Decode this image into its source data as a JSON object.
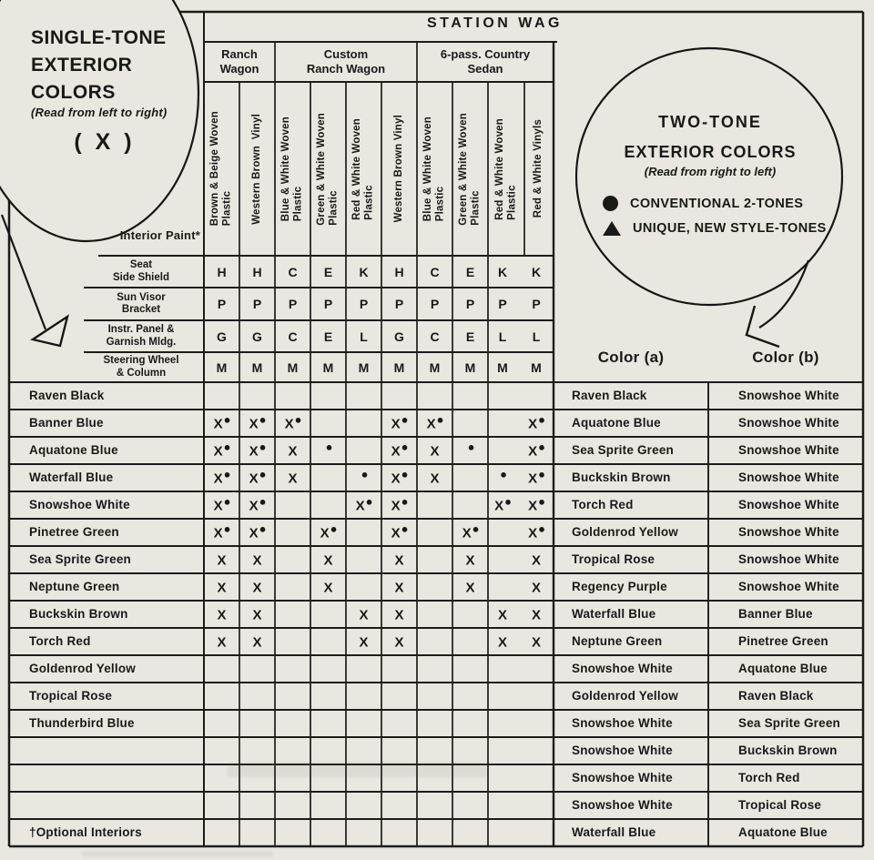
{
  "header": {
    "station_title": "STATION WAG"
  },
  "single_tone": {
    "heading_lines": [
      "SINGLE-TONE",
      "EXTERIOR",
      "COLORS"
    ],
    "subheading": "(Read from left to right)",
    "symbol": "( X )"
  },
  "two_tone": {
    "heading_line1": "TWO-TONE",
    "heading_line2": "EXTERIOR COLORS",
    "subheading": "(Read from right to left)",
    "legend": [
      {
        "symbol": "circle-icon",
        "label": "CONVENTIONAL 2-TONES"
      },
      {
        "symbol": "triangle-icon",
        "label": "UNIQUE, NEW STYLE-TONES"
      }
    ],
    "col_a_header": "Color (a)",
    "col_b_header": "Color (b)",
    "pairs": [
      [
        "Raven Black",
        "Snowshoe White"
      ],
      [
        "Aquatone Blue",
        "Snowshoe White"
      ],
      [
        "Sea Sprite Green",
        "Snowshoe White"
      ],
      [
        "Buckskin Brown",
        "Snowshoe White"
      ],
      [
        "Torch Red",
        "Snowshoe White"
      ],
      [
        "Goldenrod Yellow",
        "Snowshoe White"
      ],
      [
        "Tropical Rose",
        "Snowshoe White"
      ],
      [
        "Regency Purple",
        "Snowshoe White"
      ],
      [
        "Waterfall Blue",
        "Banner Blue"
      ],
      [
        "Neptune Green",
        "Pinetree Green"
      ],
      [
        "Snowshoe White",
        "Aquatone Blue"
      ],
      [
        "Goldenrod Yellow",
        "Raven Black"
      ],
      [
        "Snowshoe White",
        "Sea Sprite Green"
      ],
      [
        "Snowshoe White",
        "Buckskin Brown"
      ],
      [
        "Snowshoe White",
        "Torch Red"
      ],
      [
        "Snowshoe White",
        "Tropical Rose"
      ],
      [
        "Waterfall Blue",
        "Aquatone Blue"
      ]
    ]
  },
  "grid": {
    "groups": [
      {
        "lines": [
          "Ranch",
          "Wagon"
        ],
        "from": 0,
        "to": 2
      },
      {
        "lines": [
          "Custom",
          "Ranch Wagon"
        ],
        "from": 2,
        "to": 6
      },
      {
        "lines": [
          "6-pass. Country",
          "Sedan"
        ],
        "from": 6,
        "to": 10
      }
    ],
    "columns": [
      [
        "Brown & Beige Woven",
        "Plastic"
      ],
      [
        "Western Brown  Vinyl"
      ],
      [
        "Blue & White Woven",
        "Plastic"
      ],
      [
        "Green & White Woven",
        "Plastic"
      ],
      [
        "Red & White Woven",
        "Plastic"
      ],
      [
        "Western Brown Vinyl"
      ],
      [
        "Blue & White Woven",
        "Plastic"
      ],
      [
        "Green & White Woven",
        "Plastic"
      ],
      [
        "Red & White Woven",
        "Plastic"
      ],
      [
        "Red & White Vinyls"
      ]
    ],
    "interior_paint_label": "Interior Paint*",
    "trim_rows": [
      {
        "lines": [
          "Seat",
          "Side Shield"
        ],
        "values": [
          "H",
          "H",
          "C",
          "E",
          "K",
          "H",
          "C",
          "E",
          "K",
          "K"
        ]
      },
      {
        "lines": [
          "Sun Visor",
          "Bracket"
        ],
        "values": [
          "P",
          "P",
          "P",
          "P",
          "P",
          "P",
          "P",
          "P",
          "P",
          "P"
        ]
      },
      {
        "lines": [
          "Instr. Panel &",
          "Garnish Mldg."
        ],
        "values": [
          "G",
          "G",
          "C",
          "E",
          "L",
          "G",
          "C",
          "E",
          "L",
          "L"
        ]
      },
      {
        "lines": [
          "Steering Wheel",
          "& Column"
        ],
        "values": [
          "M",
          "M",
          "M",
          "M",
          "M",
          "M",
          "M",
          "M",
          "M",
          "M"
        ]
      }
    ],
    "color_rows": [
      {
        "label": "Raven Black",
        "marks": [
          "",
          "",
          "",
          "",
          "",
          "",
          "",
          "",
          "",
          ""
        ]
      },
      {
        "label": "Banner Blue",
        "marks": [
          "X●",
          "X●",
          "X●",
          "",
          "",
          "X●",
          "X●",
          "",
          "",
          "X●"
        ]
      },
      {
        "label": "Aquatone Blue",
        "marks": [
          "X●",
          "X●",
          "X",
          "●",
          "",
          "X●",
          "X",
          "●",
          "",
          "X●"
        ]
      },
      {
        "label": "Waterfall Blue",
        "marks": [
          "X●",
          "X●",
          "X",
          "",
          "●",
          "X●",
          "X",
          "",
          "●",
          "X●"
        ]
      },
      {
        "label": "Snowshoe White",
        "marks": [
          "X●",
          "X●",
          "",
          "",
          "X●",
          "X●",
          "",
          "",
          "X●",
          "X●"
        ]
      },
      {
        "label": "Pinetree Green",
        "marks": [
          "X●",
          "X●",
          "",
          "X●",
          "",
          "X●",
          "",
          "X●",
          "",
          "X●"
        ]
      },
      {
        "label": "Sea Sprite Green",
        "marks": [
          "X",
          "X",
          "",
          "X",
          "",
          "X",
          "",
          "X",
          "",
          "X"
        ]
      },
      {
        "label": "Neptune Green",
        "marks": [
          "X",
          "X",
          "",
          "X",
          "",
          "X",
          "",
          "X",
          "",
          "X"
        ]
      },
      {
        "label": "Buckskin Brown",
        "marks": [
          "X",
          "X",
          "",
          "",
          "X",
          "X",
          "",
          "",
          "X",
          "X"
        ]
      },
      {
        "label": "Torch Red",
        "marks": [
          "X",
          "X",
          "",
          "",
          "X",
          "X",
          "",
          "",
          "X",
          "X"
        ]
      },
      {
        "label": "Goldenrod Yellow",
        "marks": [
          "",
          "",
          "",
          "",
          "",
          "",
          "",
          "",
          "",
          ""
        ]
      },
      {
        "label": "Tropical Rose",
        "marks": [
          "",
          "",
          "",
          "",
          "",
          "",
          "",
          "",
          "",
          ""
        ]
      },
      {
        "label": "Thunderbird Blue",
        "marks": [
          "",
          "",
          "",
          "",
          "",
          "",
          "",
          "",
          "",
          ""
        ]
      },
      {
        "label": "",
        "marks": [
          "",
          "",
          "",
          "",
          "",
          "",
          "",
          "",
          "",
          ""
        ]
      },
      {
        "label": "",
        "marks": [
          "",
          "",
          "",
          "",
          "",
          "",
          "",
          "",
          "",
          ""
        ]
      },
      {
        "label": "",
        "marks": [
          "",
          "",
          "",
          "",
          "",
          "",
          "",
          "",
          "",
          ""
        ]
      },
      {
        "label": "†Optional Interiors",
        "marks": [
          "",
          "",
          "",
          "",
          "",
          "",
          "",
          "",
          "",
          ""
        ]
      }
    ]
  },
  "colors": {
    "paper": "#eae7e1",
    "ink": "#1a1a1a"
  }
}
